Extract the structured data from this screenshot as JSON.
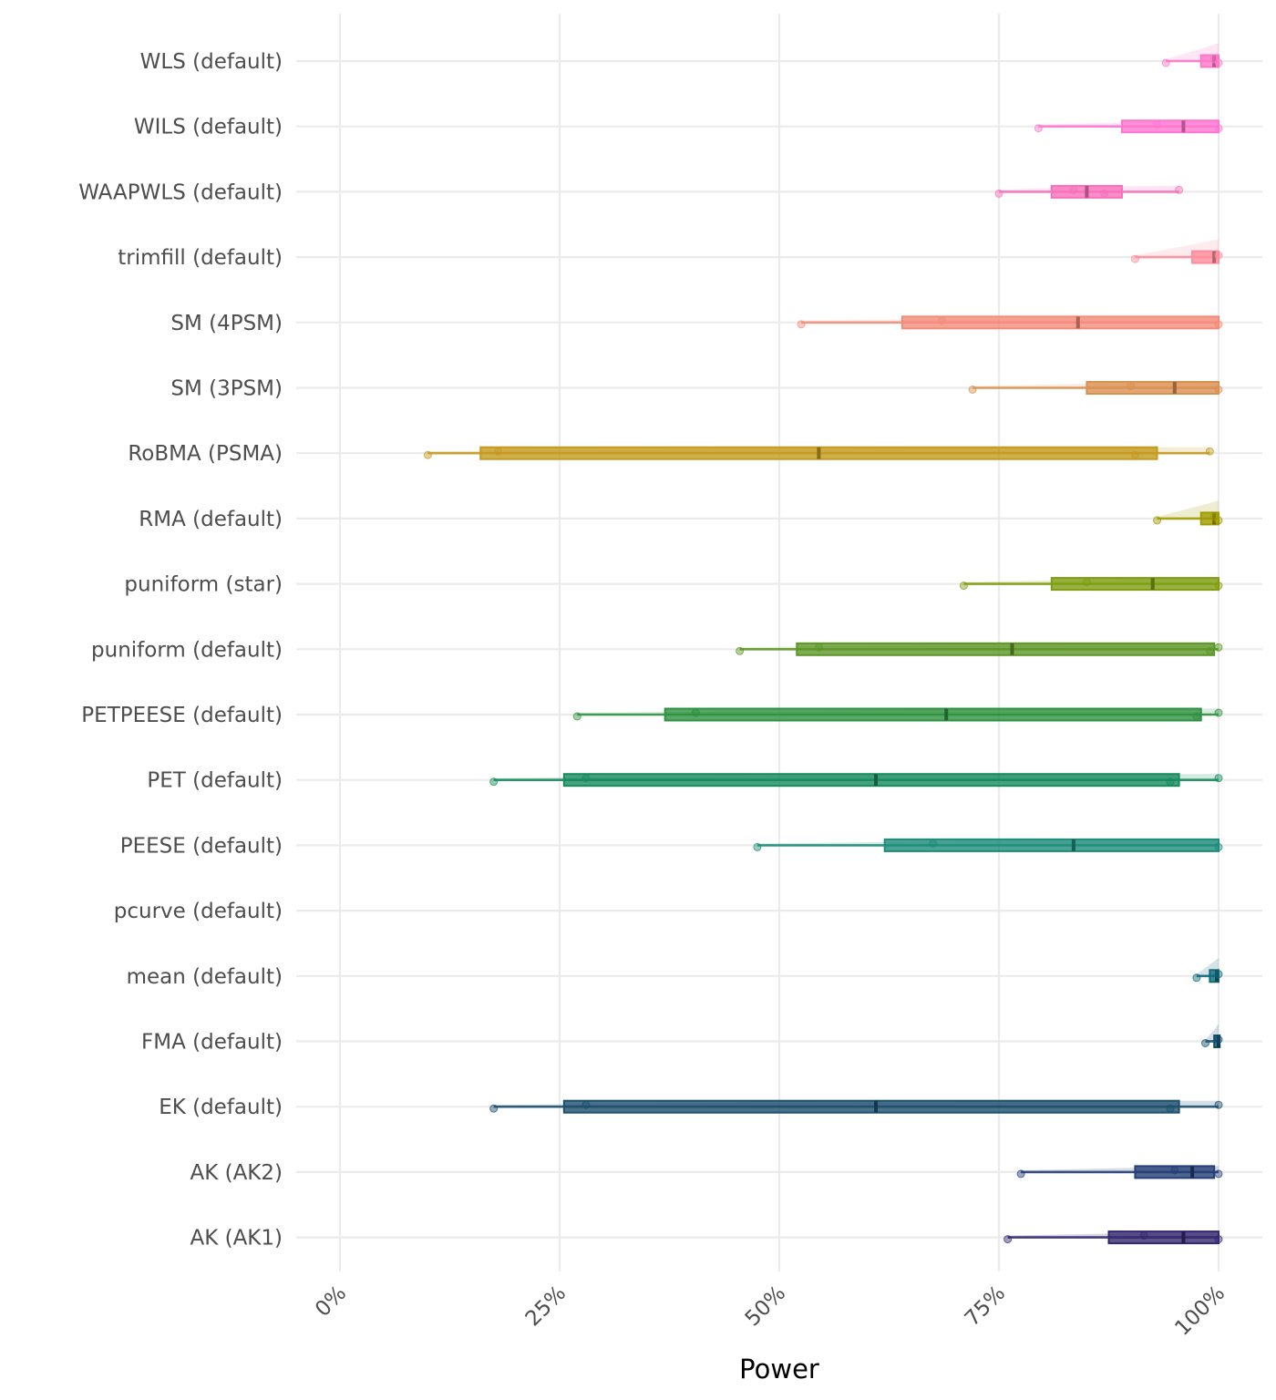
{
  "chart_data": {
    "type": "raincloud",
    "xlabel": "Power",
    "x_ticks": [
      "0%",
      "25%",
      "50%",
      "75%",
      "100%"
    ],
    "xlim": [
      0,
      1
    ],
    "grid": true,
    "legend": "none",
    "series": [
      {
        "name": "WLS (default)",
        "color": "#ff62bc",
        "min": 0.94,
        "q1": 0.98,
        "median": 0.995,
        "q3": 1.0,
        "max": 1.0,
        "points": [
          0.94,
          0.995,
          1.0
        ]
      },
      {
        "name": "WILS (default)",
        "color": "#fc61d5",
        "min": 0.795,
        "q1": 0.89,
        "median": 0.96,
        "q3": 1.0,
        "max": 1.0,
        "points": [
          0.795,
          0.93,
          1.0
        ]
      },
      {
        "name": "WAAPWLS (default)",
        "color": "#f564e3",
        "min": 0.75,
        "q1": 0.81,
        "median": 0.85,
        "q3": 0.89,
        "max": 0.955,
        "points": [
          0.75,
          0.835,
          0.87,
          0.955
        ]
      },
      {
        "name": "trimfill (default)",
        "color": "#f8766d",
        "min": 0.905,
        "q1": 0.97,
        "median": 0.995,
        "q3": 1.0,
        "max": 1.0,
        "points": [
          0.905,
          1.0
        ]
      },
      {
        "name": "SM (4PSM)",
        "color": "#f07f59",
        "min": 0.525,
        "q1": 0.64,
        "median": 0.84,
        "q3": 1.0,
        "max": 1.0,
        "points": [
          0.525,
          0.685,
          1.0
        ]
      },
      {
        "name": "SM (3PSM)",
        "color": "#d89000",
        "min": 0.72,
        "q1": 0.85,
        "median": 0.95,
        "q3": 1.0,
        "max": 1.0,
        "points": [
          0.72,
          0.9,
          1.0
        ]
      },
      {
        "name": "RoBMA (PSMA)",
        "color": "#c49a00",
        "min": 0.1,
        "q1": 0.16,
        "median": 0.545,
        "q3": 0.93,
        "max": 0.99,
        "points": [
          0.1,
          0.18,
          0.905,
          0.99
        ]
      },
      {
        "name": "RMA (default)",
        "color": "#a3a500",
        "min": 0.93,
        "q1": 0.98,
        "median": 0.995,
        "q3": 1.0,
        "max": 1.0,
        "points": [
          0.93,
          0.995,
          1.0
        ]
      },
      {
        "name": "puniform (star)",
        "color": "#7cae00",
        "min": 0.71,
        "q1": 0.81,
        "median": 0.925,
        "q3": 1.0,
        "max": 1.0,
        "points": [
          0.71,
          0.85,
          1.0
        ]
      },
      {
        "name": "puniform (default)",
        "color": "#53b400",
        "min": 0.455,
        "q1": 0.52,
        "median": 0.765,
        "q3": 0.995,
        "max": 1.0,
        "points": [
          0.455,
          0.545,
          0.99,
          1.0
        ]
      },
      {
        "name": "PETPEESE (default)",
        "color": "#00bc56",
        "min": 0.27,
        "q1": 0.37,
        "median": 0.69,
        "q3": 0.98,
        "max": 1.0,
        "points": [
          0.27,
          0.405,
          0.975,
          1.0
        ]
      },
      {
        "name": "PET (default)",
        "color": "#00c094",
        "min": 0.175,
        "q1": 0.255,
        "median": 0.61,
        "q3": 0.955,
        "max": 1.0,
        "points": [
          0.175,
          0.28,
          0.945,
          1.0
        ]
      },
      {
        "name": "PEESE (default)",
        "color": "#00bfc4",
        "min": 0.475,
        "q1": 0.62,
        "median": 0.835,
        "q3": 1.0,
        "max": 1.0,
        "points": [
          0.475,
          0.675,
          1.0
        ]
      },
      {
        "name": "pcurve (default)",
        "color": "#00b6eb",
        "min": null,
        "q1": null,
        "median": null,
        "q3": null,
        "max": null,
        "points": []
      },
      {
        "name": "mean (default)",
        "color": "#06a4ff",
        "min": 0.975,
        "q1": 0.99,
        "median": 0.998,
        "q3": 1.0,
        "max": 1.0,
        "points": [
          0.975,
          1.0
        ]
      },
      {
        "name": "FMA (default)",
        "color": "#a58aff",
        "min": 0.985,
        "q1": 0.995,
        "median": 1.0,
        "q3": 1.0,
        "max": 1.0,
        "points": [
          0.985,
          1.0
        ]
      },
      {
        "name": "EK (default)",
        "color": "#df70f8",
        "min": 0.175,
        "q1": 0.255,
        "median": 0.61,
        "q3": 0.955,
        "max": 1.0,
        "points": [
          0.175,
          0.28,
          0.945,
          1.0
        ]
      },
      {
        "name": "AK (AK2)",
        "color": "#fb61d7",
        "min": 0.775,
        "q1": 0.905,
        "median": 0.97,
        "q3": 0.995,
        "max": 1.0,
        "points": [
          0.775,
          0.95,
          1.0
        ]
      },
      {
        "name": "AK (AK1)",
        "color": "#ff6c91",
        "min": 0.76,
        "q1": 0.875,
        "median": 0.96,
        "q3": 1.0,
        "max": 1.0,
        "points": [
          0.76,
          0.915,
          1.0
        ]
      }
    ],
    "colors": [
      "#ff77c8",
      "#ff77d0",
      "#f771bb",
      "#ff8c9c",
      "#f48c7a",
      "#d99051",
      "#c49a1f",
      "#a09b00",
      "#809d12",
      "#5e9628",
      "#2e9140",
      "#178b5e",
      "#1e8c7a",
      "#00b6eb",
      "#0f6a7a",
      "#114f6f",
      "#1d4f6e",
      "#233f75",
      "#35286e"
    ]
  }
}
